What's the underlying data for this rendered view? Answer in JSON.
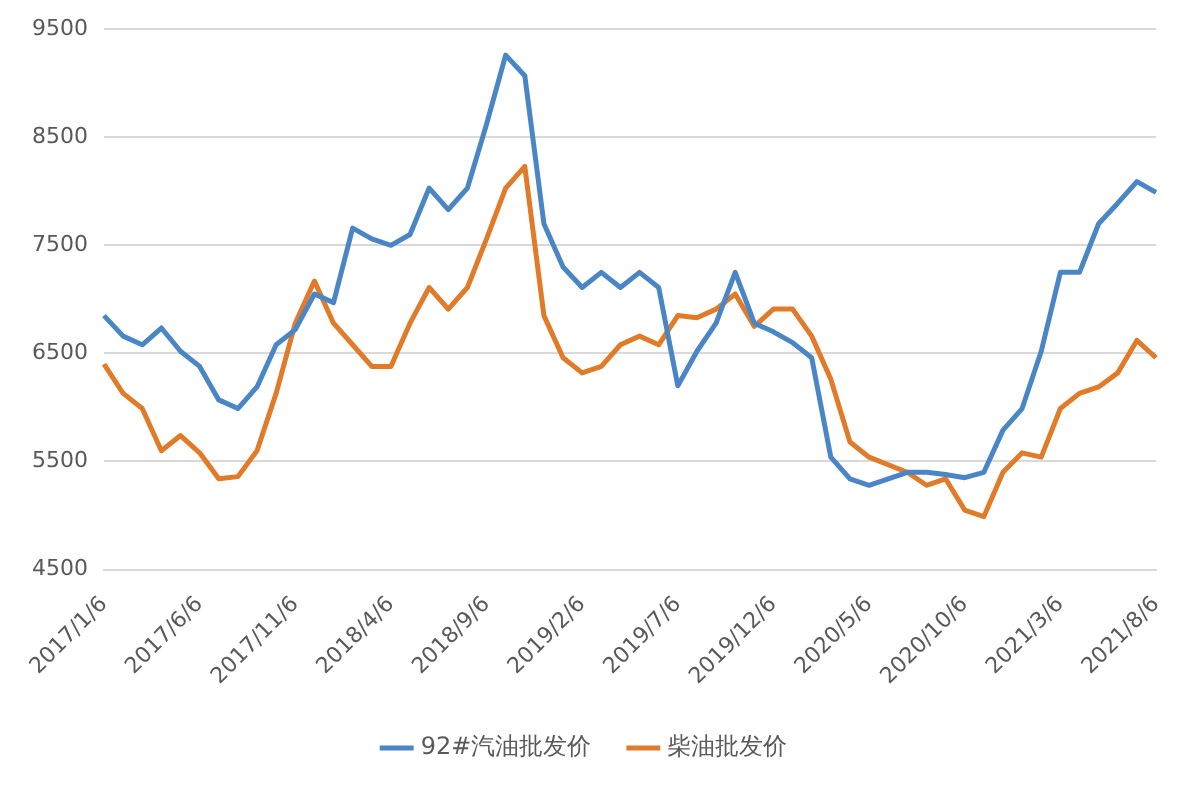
{
  "chart_data": {
    "type": "line",
    "categories": [
      "2017/1/6",
      null,
      null,
      null,
      null,
      "2017/6/6",
      null,
      null,
      null,
      null,
      "2017/11/6",
      null,
      null,
      null,
      null,
      "2018/4/6",
      null,
      null,
      null,
      null,
      "2018/9/6",
      null,
      null,
      null,
      null,
      "2019/2/6",
      null,
      null,
      null,
      null,
      "2019/7/6",
      null,
      null,
      null,
      null,
      "2019/12/6",
      null,
      null,
      null,
      null,
      "2020/5/6",
      null,
      null,
      null,
      null,
      "2020/10/6",
      null,
      null,
      null,
      null,
      "2021/3/6",
      null,
      null,
      null,
      null,
      "2021/8/6"
    ],
    "series": [
      {
        "name": "92#汽油批发价",
        "color": "#4a86c5",
        "values": [
          6850,
          6660,
          6580,
          6735,
          6520,
          6380,
          6070,
          5990,
          6190,
          6580,
          6720,
          7050,
          6970,
          7660,
          7560,
          7500,
          7600,
          8030,
          7830,
          8030,
          8620,
          9260,
          9070,
          7700,
          7300,
          7110,
          7250,
          7110,
          7250,
          7110,
          6200,
          6520,
          6780,
          7250,
          6780,
          6700,
          6600,
          6460,
          5540,
          5340,
          5280,
          5340,
          5400,
          5400,
          5380,
          5350,
          5400,
          5790,
          5990,
          6520,
          7250,
          7250,
          7700,
          7890,
          8090,
          7990
        ]
      },
      {
        "name": "柴油批发价",
        "color": "#e07b2a",
        "values": [
          6400,
          6130,
          5990,
          5600,
          5740,
          5580,
          5340,
          5360,
          5600,
          6130,
          6780,
          7170,
          6780,
          6580,
          6380,
          6380,
          6780,
          7110,
          6910,
          7110,
          7560,
          8030,
          8230,
          6850,
          6460,
          6320,
          6380,
          6580,
          6660,
          6580,
          6850,
          6830,
          6910,
          7050,
          6750,
          6910,
          6910,
          6660,
          6260,
          5680,
          5540,
          5470,
          5400,
          5280,
          5340,
          5050,
          4990,
          5400,
          5580,
          5540,
          5990,
          6130,
          6190,
          6320,
          6620,
          6460
        ]
      }
    ],
    "ylim": [
      4500,
      9500
    ],
    "yticks": [
      4500,
      5500,
      6500,
      7500,
      8500,
      9500
    ],
    "grid": "y",
    "legend": "bottom",
    "marker": "none",
    "line_style": "solid"
  }
}
